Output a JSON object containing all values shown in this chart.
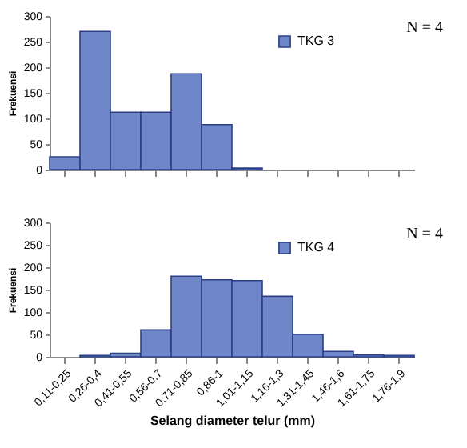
{
  "chart_data": [
    {
      "type": "bar",
      "categories": [
        null,
        null,
        null,
        null,
        null,
        null,
        null,
        null,
        null,
        null,
        null,
        null
      ],
      "ylabel": "Frekuensi",
      "series": [
        {
          "name": "TKG 3",
          "color": "#6f86c8",
          "values": [
            25,
            270,
            112,
            112,
            187,
            88,
            3,
            0,
            0,
            0,
            0,
            0
          ]
        }
      ],
      "ylim": [
        0,
        300
      ],
      "yticks": [
        0,
        50,
        100,
        150,
        200,
        250,
        300
      ],
      "tick_labels": "y",
      "legend": "top right",
      "annotations": [
        "N = 4"
      ]
    },
    {
      "type": "bar",
      "categories": [
        "0,11-0,25",
        "0,26-0,4",
        "0,41-0,55",
        "0,56-0,7",
        "0,71-0,85",
        "0,86-1",
        "1,01-1,15",
        "1,16-1,3",
        "1,31-1,45",
        "1,46-1,6",
        "1,61-1,75",
        "1,76-1,9"
      ],
      "xlabel": "Selang diameter telur (mm)",
      "ylabel": "Frekuensi",
      "series": [
        {
          "name": "TKG 4",
          "color": "#6f86c8",
          "values": [
            0,
            3,
            8,
            60,
            180,
            172,
            170,
            135,
            50,
            12,
            4,
            3
          ]
        }
      ],
      "ylim": [
        0,
        300
      ],
      "yticks": [
        0,
        50,
        100,
        150,
        200,
        250,
        300
      ],
      "legend": "top right",
      "annotations": [
        "N = 4"
      ]
    }
  ]
}
